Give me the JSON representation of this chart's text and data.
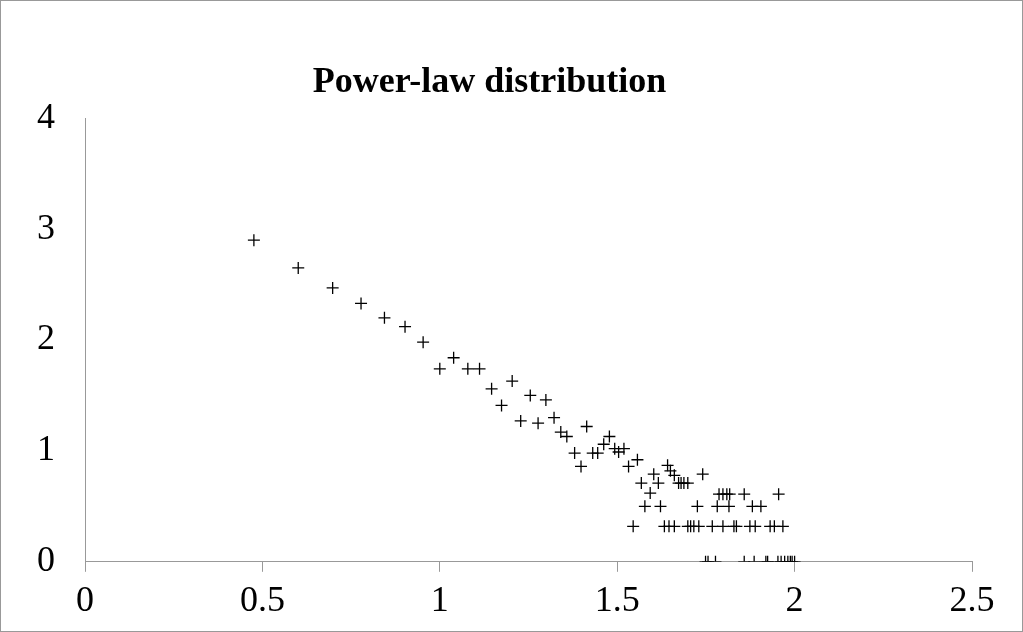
{
  "chart_data": {
    "type": "scatter",
    "title": "Power-law distribution",
    "x": [
      0.476,
      0.601,
      0.698,
      0.778,
      0.844,
      0.902,
      0.953,
      1.0,
      1.039,
      1.079,
      1.112,
      1.146,
      1.204,
      1.174,
      1.255,
      1.299,
      1.228,
      1.277,
      1.322,
      1.341,
      1.358,
      1.414,
      1.38,
      1.431,
      1.398,
      1.445,
      1.462,
      1.478,
      1.493,
      1.504,
      1.519,
      1.532,
      1.557,
      1.568,
      1.593,
      1.603,
      1.616,
      1.578,
      1.622,
      1.545,
      1.642,
      1.65,
      1.661,
      1.673,
      1.68,
      1.688,
      1.699,
      1.741,
      1.787,
      1.798,
      1.809,
      1.817,
      1.858,
      1.955,
      1.726,
      1.782,
      1.815,
      1.881,
      1.905,
      1.633,
      1.646,
      1.661,
      1.699,
      1.707,
      1.716,
      1.73,
      1.768,
      1.798,
      1.829,
      1.836,
      1.874,
      1.889,
      1.931,
      1.943,
      1.967,
      1.749,
      1.756,
      1.777,
      1.858,
      1.886,
      1.919,
      1.924,
      1.953,
      1.962,
      1.972,
      1.981,
      1.988,
      1.993,
      2.0
    ],
    "series": [
      {
        "color": "#000000",
        "values": [
          2.9,
          2.65,
          2.47,
          2.33,
          2.2,
          2.12,
          1.98,
          1.74,
          1.84,
          1.74,
          1.74,
          1.56,
          1.63,
          1.41,
          1.5,
          1.46,
          1.27,
          1.25,
          1.3,
          1.17,
          1.13,
          1.22,
          0.98,
          0.98,
          0.86,
          0.98,
          1.06,
          1.13,
          1.02,
          0.99,
          1.02,
          0.86,
          0.92,
          0.71,
          0.62,
          0.79,
          0.71,
          0.5,
          0.5,
          0.32,
          0.87,
          0.82,
          0.78,
          0.71,
          0.71,
          0.71,
          0.71,
          0.79,
          0.61,
          0.61,
          0.61,
          0.61,
          0.61,
          0.61,
          0.5,
          0.5,
          0.5,
          0.5,
          0.5,
          0.32,
          0.32,
          0.32,
          0.32,
          0.32,
          0.32,
          0.32,
          0.32,
          0.32,
          0.32,
          0.32,
          0.32,
          0.32,
          0.32,
          0.32,
          0.32,
          0,
          0,
          0,
          0,
          0,
          0,
          0,
          0,
          0,
          0,
          0,
          0,
          0,
          0
        ]
      }
    ],
    "xlim": [
      0,
      2.5
    ],
    "xticks": [
      0,
      0.5,
      1,
      1.5,
      2,
      2.5
    ],
    "ylim": [
      0,
      4
    ],
    "yticks": [
      0,
      1,
      2,
      3,
      4
    ],
    "grid": false,
    "legend": false,
    "marker": "cross"
  }
}
